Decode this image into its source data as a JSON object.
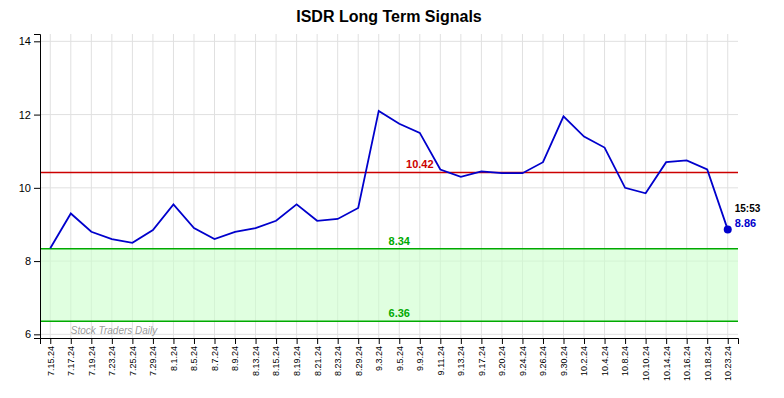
{
  "chart_data": {
    "type": "line",
    "title": "ISDR Long Term Signals",
    "categories": [
      "7.15.24",
      "7.17.24",
      "7.19.24",
      "7.23.24",
      "7.25.24",
      "7.29.24",
      "8.1.24",
      "8.5.24",
      "8.7.24",
      "8.9.24",
      "8.13.24",
      "8.15.24",
      "8.19.24",
      "8.21.24",
      "8.23.24",
      "8.29.24",
      "9.3.24",
      "9.5.24",
      "9.9.24",
      "9.11.24",
      "9.13.24",
      "9.17.24",
      "9.20.24",
      "9.24.24",
      "9.26.24",
      "9.30.24",
      "10.2.24",
      "10.4.24",
      "10.8.24",
      "10.10.24",
      "10.14.24",
      "10.16.24",
      "10.18.24",
      "10.23.24"
    ],
    "values": [
      8.35,
      9.3,
      8.8,
      8.6,
      8.5,
      8.85,
      9.55,
      8.9,
      8.6,
      8.8,
      8.9,
      9.1,
      9.55,
      9.1,
      9.15,
      9.45,
      12.1,
      11.75,
      11.5,
      10.5,
      10.3,
      10.45,
      10.4,
      10.4,
      10.7,
      11.95,
      11.4,
      11.1,
      10.0,
      9.85,
      10.7,
      10.75,
      10.5,
      8.86
    ],
    "color": "#0000cc",
    "ylim": [
      5.9,
      14.2
    ],
    "yticks": [
      6,
      8,
      10,
      12,
      14
    ],
    "grid": true,
    "reference_lines": [
      {
        "value": 10.42,
        "label": "10.42",
        "color": "#cc0000"
      },
      {
        "value": 8.34,
        "label": "8.34",
        "color": "#00aa00"
      },
      {
        "value": 6.36,
        "label": "6.36",
        "color": "#00aa00"
      }
    ],
    "bands": [
      {
        "from": 6.36,
        "to": 8.34,
        "color": "#ccffcc"
      }
    ],
    "annotations": [
      {
        "text": "15:53"
      },
      {
        "text": "8.86",
        "value": 8.86,
        "color": "#0000cc"
      },
      {
        "text": "Stock Traders Daily"
      }
    ]
  }
}
